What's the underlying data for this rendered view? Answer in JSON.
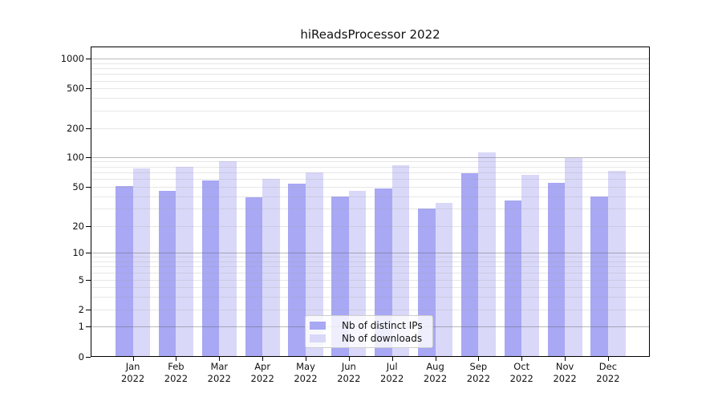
{
  "title": "hiReadsProcessor 2022",
  "chart_data": {
    "type": "bar",
    "title": "hiReadsProcessor 2022",
    "categories": [
      "Jan 2022",
      "Feb 2022",
      "Mar 2022",
      "Apr 2022",
      "May 2022",
      "Jun 2022",
      "Jul 2022",
      "Aug 2022",
      "Sep 2022",
      "Oct 2022",
      "Nov 2022",
      "Dec 2022"
    ],
    "x_year": "2022",
    "series": [
      {
        "name": "Nb of distinct IPs",
        "color": "#a8a8f4",
        "values": [
          51,
          45,
          58,
          39,
          54,
          40,
          48,
          30,
          68,
          36,
          55,
          40
        ]
      },
      {
        "name": "Nb of downloads",
        "color": "#d9d8f9",
        "values": [
          77,
          80,
          90,
          60,
          70,
          45,
          83,
          34,
          112,
          66,
          97,
          73
        ]
      }
    ],
    "xlabel": "",
    "ylabel": "",
    "yscale": "symlog",
    "ylim": [
      0,
      1300
    ],
    "yticks": [
      0,
      1,
      2,
      5,
      10,
      20,
      50,
      100,
      200,
      500,
      1000
    ],
    "major_gridlines": [
      1,
      10,
      100,
      1000
    ],
    "minor_gridlines": [
      2,
      3,
      4,
      5,
      6,
      7,
      8,
      9,
      20,
      30,
      40,
      50,
      60,
      70,
      80,
      90,
      200,
      300,
      400,
      500,
      600,
      700,
      800,
      900
    ],
    "grid": true,
    "legend_position": "lower center",
    "colors": {
      "major_grid": "rgba(100,100,100,0.45)",
      "minor_grid": "rgba(160,160,160,0.25)",
      "axis": "#000000",
      "background": "#ffffff"
    }
  }
}
